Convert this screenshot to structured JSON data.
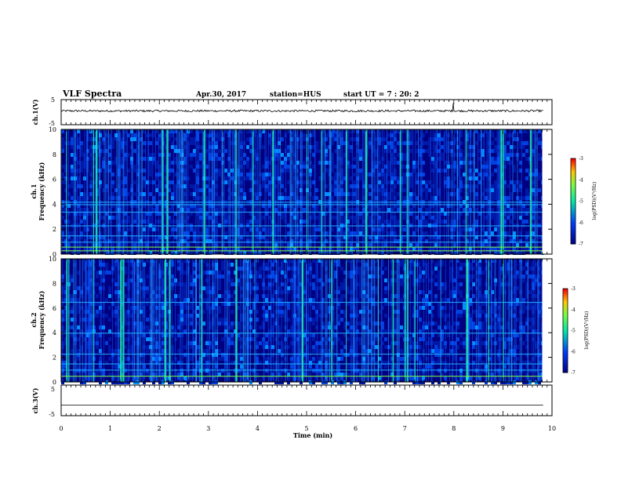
{
  "header": {
    "title": "VLF Spectra",
    "date": "Apr.30, 2017",
    "station": "station=HUS",
    "start": "start UT = 7 : 20: 2"
  },
  "panel_labels": {
    "ch1_wave": "ch.1(V)",
    "ch1_spec_a": "ch.1",
    "ch1_spec_b": "Frequency (kHz)",
    "ch2_spec_a": "ch.2",
    "ch2_spec_b": "Frequency (kHz)",
    "ch3_wave": "ch.3(V)",
    "xlabel": "Time (min)",
    "colorbar_label": "log(PSD)(V²/Hz)"
  },
  "chart_data": [
    {
      "id": "ch1-waveform",
      "type": "line",
      "ylabel": "ch.1(V)",
      "ylim": [
        -5,
        5
      ],
      "yticks": [
        "5",
        "-5"
      ],
      "xlim": [
        0,
        10
      ],
      "baseline": 0.5,
      "noise_amplitude": 0.4,
      "color": "#000000"
    },
    {
      "id": "ch1-spectrogram",
      "type": "heatmap",
      "ylabel": "ch.1 Frequency (kHz)",
      "ylim": [
        0,
        10
      ],
      "yticks": [
        "0",
        "2",
        "4",
        "6",
        "8",
        "10"
      ],
      "xlim": [
        0,
        9.8
      ],
      "zlim": [
        -7,
        -3
      ],
      "colorbar_ticks": [
        "-3",
        "-4",
        "-5",
        "-6",
        "-7"
      ],
      "bright_times_min": [
        0.1,
        0.65,
        0.7,
        2.05,
        2.15,
        2.9,
        3.55,
        3.9,
        4.3,
        5.0,
        5.3,
        5.8,
        6.2,
        6.9,
        7.05,
        8.25,
        8.95,
        9.0,
        9.55
      ],
      "horizontal_lines_khz": [
        0.3,
        0.6,
        1.0,
        1.5,
        2.3,
        3.4,
        4.0,
        4.2
      ]
    },
    {
      "id": "ch2-spectrogram",
      "type": "heatmap",
      "ylabel": "ch.2 Frequency (kHz)",
      "ylim": [
        0,
        10
      ],
      "yticks": [
        "0",
        "2",
        "4",
        "6",
        "8",
        "10"
      ],
      "xlim": [
        0,
        9.8
      ],
      "zlim": [
        -7,
        -3
      ],
      "colorbar_ticks": [
        "-3",
        "-4",
        "-5",
        "-6",
        "-7"
      ],
      "bright_times_min": [
        0.1,
        0.15,
        0.65,
        1.2,
        1.25,
        2.1,
        2.2,
        2.85,
        3.55,
        4.9,
        5.5,
        5.8,
        6.45,
        6.75,
        7.0,
        7.05,
        7.2,
        8.25,
        8.7,
        9.0
      ],
      "horizontal_lines_khz": [
        0.5,
        1.0,
        1.5,
        2.3,
        4.0,
        6.5
      ]
    },
    {
      "id": "ch3-waveform",
      "type": "line",
      "ylabel": "ch.3(V)",
      "ylim": [
        -5,
        5
      ],
      "yticks": [
        "5",
        "-5"
      ],
      "xlim": [
        0,
        10
      ],
      "baseline": -1.5,
      "noise_amplitude": 0,
      "color": "#000000"
    }
  ],
  "x_axis": {
    "label": "Time (min)",
    "ticks": [
      "0",
      "1",
      "2",
      "3",
      "4",
      "5",
      "6",
      "7",
      "8",
      "9",
      "10"
    ],
    "range": [
      0,
      10
    ]
  },
  "colors": {
    "spec_low": "#000080",
    "spec_mid": "#0040ff",
    "spec_hi": "#00ffa0",
    "line": "#000000"
  }
}
